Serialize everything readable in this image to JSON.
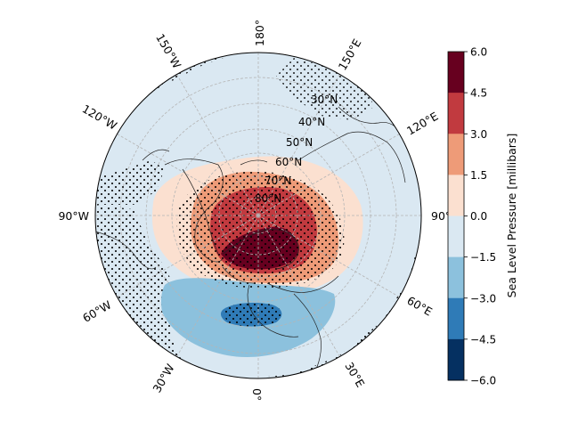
{
  "map": {
    "projection": "north-polar-stereographic",
    "longitude_labels": [
      "180°",
      "150°E",
      "120°E",
      "90°E",
      "60°E",
      "30°E",
      "0°",
      "30°W",
      "60°W",
      "90°W",
      "120°W",
      "150°W"
    ],
    "latitude_labels": [
      "30°N",
      "40°N",
      "50°N",
      "60°N",
      "70°N",
      "80°N"
    ],
    "field": "sea level pressure anomaly",
    "stippling": "significance dots",
    "gridlines": true,
    "coastlines": true
  },
  "colorbar": {
    "label": "Sea Level Pressure [millibars]",
    "ticks": [
      "6.0",
      "4.5",
      "3.0",
      "1.5",
      "0.0",
      "−1.5",
      "−3.0",
      "−4.5",
      "−6.0"
    ],
    "bins": [
      {
        "min": 4.5,
        "max": 6.0,
        "color": "#67001f"
      },
      {
        "min": 3.0,
        "max": 4.5,
        "color": "#c13a3f"
      },
      {
        "min": 1.5,
        "max": 3.0,
        "color": "#ee9b78"
      },
      {
        "min": 0.0,
        "max": 1.5,
        "color": "#fbe0d0"
      },
      {
        "min": -1.5,
        "max": 0.0,
        "color": "#dae8f2"
      },
      {
        "min": -3.0,
        "max": -1.5,
        "color": "#8cc1dd"
      },
      {
        "min": -4.5,
        "max": -3.0,
        "color": "#2f7bb7"
      },
      {
        "min": -6.0,
        "max": -4.5,
        "color": "#053061"
      }
    ]
  }
}
